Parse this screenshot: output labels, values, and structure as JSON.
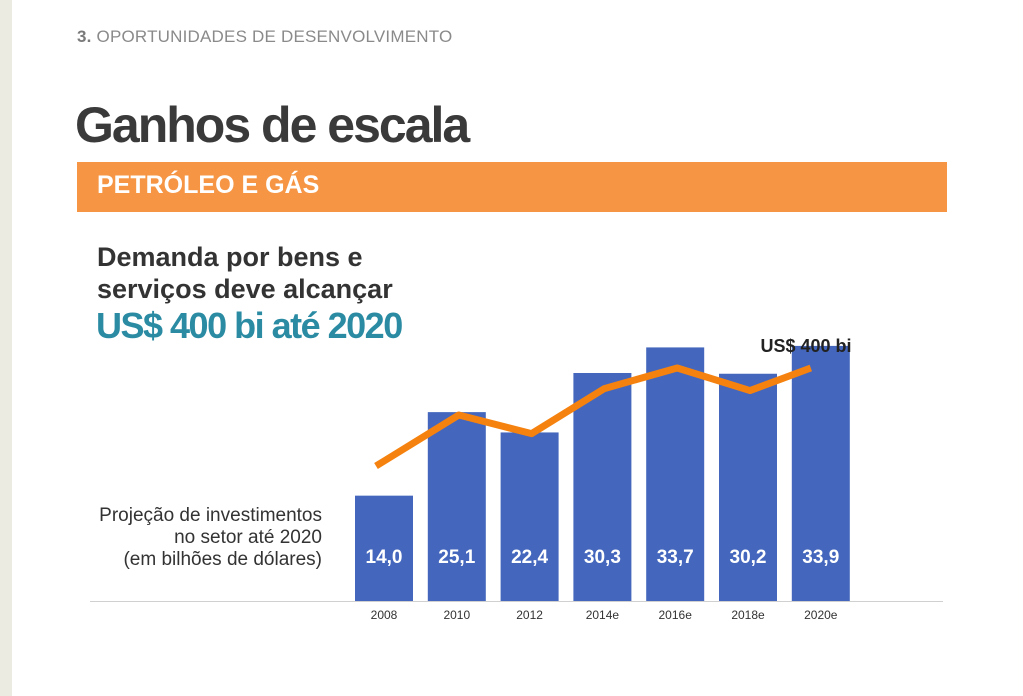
{
  "header": {
    "section_number": "3.",
    "section_title": "OPORTUNIDADES DE DESENVOLVIMENTO",
    "title": "Ganhos de escala",
    "banner": "PETRÓLEO E GÁS"
  },
  "headline": {
    "line1": "Demanda por bens e",
    "line2": "serviços deve alcançar",
    "highlight": "US$ 400 bi até 2020"
  },
  "side_note": {
    "line1": "Projeção de investimentos",
    "line2": "no setor até 2020",
    "line3": "(em bilhões de dólares)"
  },
  "colors": {
    "bar": "#4467bd",
    "line": "#f5820f",
    "banner": "#f69645",
    "highlight": "#2a8ba3"
  },
  "chart_data": {
    "type": "bar",
    "categories": [
      "2008",
      "2010",
      "2012",
      "2014e",
      "2016e",
      "2018e",
      "2020e"
    ],
    "series": [
      {
        "values": [
          14.0,
          25.1,
          22.4,
          30.3,
          33.7,
          30.2,
          33.9
        ]
      }
    ],
    "bar_labels": [
      "14,0",
      "25,1",
      "22,4",
      "30,3",
      "33,7",
      "30,2",
      "33,9"
    ],
    "overlay_line": {
      "type": "line",
      "relative_values": [
        0.0,
        0.52,
        0.33,
        0.79,
        1.0,
        0.77,
        1.0
      ],
      "end_label": "US$ 400 bi"
    },
    "ylim": [
      0,
      40
    ],
    "xlabel": "",
    "ylabel": "",
    "grid": false,
    "legend": "none"
  }
}
